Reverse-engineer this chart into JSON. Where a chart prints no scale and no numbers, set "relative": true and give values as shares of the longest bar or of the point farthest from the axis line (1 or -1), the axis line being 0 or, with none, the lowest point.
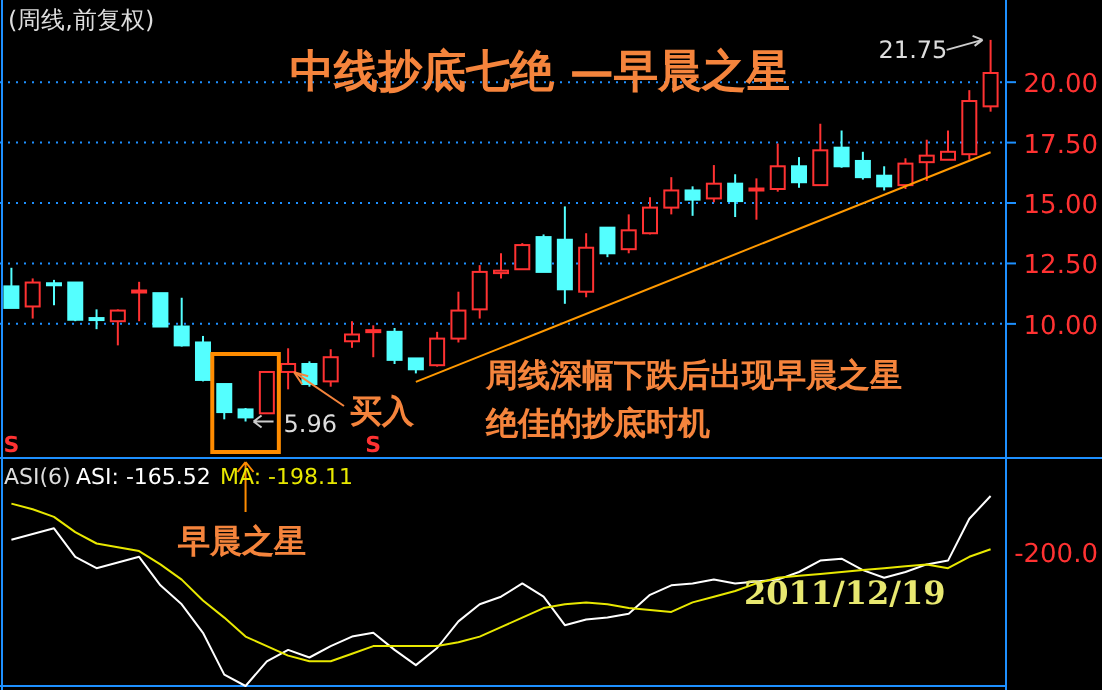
{
  "chart_data": [
    {
      "type": "candlestick",
      "title": "中线抄底七绝 —早晨之星",
      "subtitle": "(周线,前复权)",
      "categories": [
        null,
        null,
        null,
        null,
        null,
        null,
        null,
        null,
        null,
        null,
        null,
        null,
        null,
        null,
        null,
        null,
        null,
        null,
        null,
        null,
        null,
        null,
        null,
        null,
        null,
        null,
        null,
        null,
        null,
        null,
        null,
        null,
        null,
        null,
        null,
        null,
        null,
        null,
        null,
        null,
        null,
        null,
        null,
        null,
        null,
        null,
        null
      ],
      "ohlc": [
        [
          11.55,
          12.32,
          10.66,
          10.66
        ],
        [
          10.72,
          11.88,
          10.22,
          11.71
        ],
        [
          11.68,
          11.82,
          10.77,
          11.64
        ],
        [
          11.71,
          11.71,
          10.11,
          10.17
        ],
        [
          10.24,
          10.6,
          9.78,
          10.2
        ],
        [
          10.11,
          10.6,
          9.11,
          10.55
        ],
        [
          11.3,
          11.74,
          10.11,
          11.38
        ],
        [
          11.27,
          11.27,
          9.89,
          9.89
        ],
        [
          9.89,
          11.08,
          9.06,
          9.11
        ],
        [
          9.23,
          9.5,
          7.62,
          7.68
        ],
        [
          7.51,
          7.51,
          6.05,
          6.35
        ],
        [
          6.46,
          6.52,
          5.96,
          6.13
        ],
        [
          6.3,
          8.05,
          6.3,
          8.01
        ],
        [
          8.01,
          8.99,
          7.29,
          8.34
        ],
        [
          8.34,
          8.45,
          7.4,
          7.51
        ],
        [
          7.62,
          8.95,
          7.4,
          8.62
        ],
        [
          9.28,
          10.11,
          9.01,
          9.56
        ],
        [
          9.7,
          9.94,
          8.62,
          9.74
        ],
        [
          9.67,
          9.83,
          8.34,
          8.51
        ],
        [
          8.57,
          8.57,
          7.95,
          8.12
        ],
        [
          8.29,
          9.67,
          8.23,
          9.39
        ],
        [
          9.39,
          11.33,
          9.23,
          10.55
        ],
        [
          10.6,
          12.43,
          10.22,
          12.15
        ],
        [
          12.1,
          12.92,
          11.88,
          12.2
        ],
        [
          12.26,
          13.34,
          12.26,
          13.26
        ],
        [
          13.59,
          13.7,
          12.15,
          12.15
        ],
        [
          13.48,
          14.86,
          10.83,
          11.43
        ],
        [
          11.33,
          13.75,
          11.1,
          13.15
        ],
        [
          13.98,
          14.0,
          12.76,
          12.92
        ],
        [
          13.09,
          14.53,
          12.92,
          13.87
        ],
        [
          13.75,
          15.24,
          13.7,
          14.81
        ],
        [
          14.81,
          16.07,
          14.53,
          15.52
        ],
        [
          15.52,
          15.69,
          14.47,
          15.14
        ],
        [
          15.19,
          16.57,
          15.03,
          15.8
        ],
        [
          15.8,
          16.19,
          14.42,
          15.08
        ],
        [
          15.55,
          16.02,
          14.31,
          15.6
        ],
        [
          15.58,
          17.46,
          15.47,
          16.52
        ],
        [
          16.52,
          16.9,
          15.63,
          15.86
        ],
        [
          15.74,
          18.28,
          15.74,
          17.18
        ],
        [
          17.29,
          18.0,
          16.46,
          16.52
        ],
        [
          16.74,
          17.12,
          15.97,
          16.07
        ],
        [
          16.13,
          16.52,
          15.52,
          15.69
        ],
        [
          15.74,
          16.85,
          15.58,
          16.63
        ],
        [
          16.69,
          17.62,
          15.91,
          16.96
        ],
        [
          16.79,
          18.0,
          16.79,
          17.12
        ],
        [
          17.02,
          19.67,
          16.79,
          19.22
        ],
        [
          19.0,
          21.75,
          18.78,
          20.38
        ]
      ],
      "series": [
        {
          "type": "line",
          "color": "#ff9900",
          "values": [
            null,
            null,
            null,
            null,
            null,
            null,
            null,
            null,
            null,
            null,
            null,
            null,
            null,
            null,
            null,
            null,
            null,
            null,
            null,
            7.6,
            null,
            null,
            null,
            null,
            null,
            null,
            null,
            null,
            null,
            null,
            null,
            null,
            null,
            null,
            null,
            null,
            null,
            null,
            null,
            null,
            null,
            null,
            null,
            null,
            null,
            null,
            17.1
          ]
        }
      ],
      "ylim": [
        4.45,
        23.4
      ],
      "yticks": [
        {
          "value": 10,
          "label": "10.00"
        },
        {
          "value": 12.5,
          "label": "12.50"
        },
        {
          "value": 15,
          "label": "15.00"
        },
        {
          "value": 17.5,
          "label": "17.50"
        },
        {
          "value": 20,
          "label": "20.00"
        }
      ],
      "grid": "y",
      "annotations": [
        "周线深幅下跌后出现早晨之星",
        "绝佳的抄底时机",
        "买入",
        "5.96",
        "21.75",
        "S",
        "S"
      ]
    },
    {
      "type": "line",
      "title": "ASI(6)",
      "categories": [
        null,
        null,
        null,
        null,
        null,
        null,
        null,
        null,
        null,
        null,
        null,
        null,
        null,
        null,
        null,
        null,
        null,
        null,
        null,
        null,
        null,
        null,
        null,
        null,
        null,
        null,
        null,
        null,
        null,
        null,
        null,
        null,
        null,
        null,
        null,
        null,
        null,
        null,
        null,
        null,
        null,
        null,
        null,
        null,
        null,
        null,
        null
      ],
      "relative": true,
      "series": [
        {
          "name": "ASI: -165.52",
          "color": "#ffffff",
          "values": [
            0.77,
            0.8,
            0.83,
            0.68,
            0.62,
            0.65,
            0.68,
            0.53,
            0.43,
            0.28,
            0.06,
            0,
            0.13,
            0.19,
            0.15,
            0.21,
            0.26,
            0.28,
            0.19,
            0.11,
            0.2,
            0.34,
            0.43,
            0.47,
            0.54,
            0.47,
            0.32,
            0.35,
            0.36,
            0.38,
            0.48,
            0.53,
            0.54,
            0.56,
            0.54,
            0.55,
            0.56,
            0.6,
            0.66,
            0.67,
            0.61,
            0.57,
            0.6,
            0.64,
            0.66,
            0.88,
            1
          ]
        },
        {
          "name": "MA: -198.11",
          "color": "#e8e800",
          "values": [
            0.96,
            0.93,
            0.89,
            0.81,
            0.75,
            0.73,
            0.71,
            0.64,
            0.56,
            0.45,
            0.36,
            0.26,
            0.21,
            0.16,
            0.13,
            0.13,
            0.17,
            0.21,
            0.21,
            0.21,
            0.21,
            0.23,
            0.26,
            0.31,
            0.36,
            0.41,
            0.43,
            0.44,
            0.43,
            0.41,
            0.4,
            0.39,
            0.44,
            0.47,
            0.5,
            0.54,
            0.57,
            0.58,
            0.59,
            0.6,
            0.61,
            0.62,
            0.63,
            0.64,
            0.62,
            0.68,
            0.72
          ]
        }
      ],
      "legend": "top left",
      "annotations": [
        "早晨之星",
        "2011/12/19",
        "-200.0"
      ]
    }
  ]
}
